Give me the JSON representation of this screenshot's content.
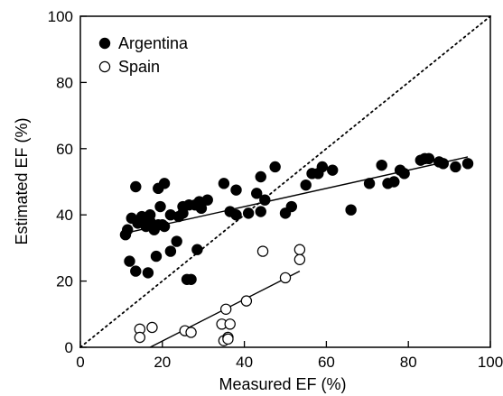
{
  "chart_data": {
    "type": "scatter",
    "xlabel": "Measured EF  (%)",
    "ylabel": "Estimated EF  (%)",
    "xlim": [
      0,
      100
    ],
    "ylim": [
      0,
      100
    ],
    "x_ticks": [
      0,
      20,
      40,
      60,
      80,
      100
    ],
    "y_ticks": [
      0,
      20,
      40,
      60,
      80,
      100
    ],
    "x_tick_labels": [
      "0",
      "20",
      "40",
      "60",
      "80",
      "100"
    ],
    "y_tick_labels": [
      "0",
      "20",
      "40",
      "60",
      "80",
      "100"
    ],
    "grid": false,
    "legend_position": "top-left",
    "identity_line": {
      "style": "dotted",
      "from": [
        0,
        0
      ],
      "to": [
        100,
        100
      ]
    },
    "series": [
      {
        "name": "Argentina",
        "marker": "filled-circle",
        "color": "#000000",
        "points": [
          [
            11,
            34
          ],
          [
            11.5,
            35.5
          ],
          [
            12,
            26
          ],
          [
            12.5,
            39
          ],
          [
            13.5,
            23
          ],
          [
            13.5,
            48.5
          ],
          [
            14,
            37.5
          ],
          [
            15,
            39.5
          ],
          [
            15,
            38
          ],
          [
            16,
            36.5
          ],
          [
            16,
            39
          ],
          [
            16.5,
            22.5
          ],
          [
            17,
            38
          ],
          [
            17,
            40
          ],
          [
            18,
            35.5
          ],
          [
            18.5,
            27.5
          ],
          [
            19,
            37
          ],
          [
            19,
            48
          ],
          [
            19.5,
            42.5
          ],
          [
            20,
            37
          ],
          [
            20.5,
            36.5
          ],
          [
            20.5,
            49.5
          ],
          [
            22,
            29
          ],
          [
            22,
            40
          ],
          [
            23.5,
            32
          ],
          [
            24,
            39.5
          ],
          [
            25,
            40.5
          ],
          [
            25,
            42.5
          ],
          [
            26,
            20.5
          ],
          [
            26.5,
            43
          ],
          [
            27,
            20.5
          ],
          [
            28,
            43
          ],
          [
            28.5,
            29.5
          ],
          [
            29,
            44
          ],
          [
            29.5,
            42
          ],
          [
            31,
            44.5
          ],
          [
            35,
            49.5
          ],
          [
            36.5,
            41
          ],
          [
            38,
            47.5
          ],
          [
            38,
            40
          ],
          [
            41,
            40.5
          ],
          [
            43,
            46.5
          ],
          [
            44,
            51.5
          ],
          [
            44,
            41
          ],
          [
            45,
            44.5
          ],
          [
            47.5,
            54.5
          ],
          [
            50,
            40.5
          ],
          [
            51.5,
            42.5
          ],
          [
            55,
            49
          ],
          [
            56.5,
            52.5
          ],
          [
            58,
            52.5
          ],
          [
            59,
            54.5
          ],
          [
            61.5,
            53.5
          ],
          [
            66,
            41.5
          ],
          [
            70.5,
            49.5
          ],
          [
            73.5,
            55
          ],
          [
            75,
            49.5
          ],
          [
            76.5,
            50
          ],
          [
            78,
            53.5
          ],
          [
            79,
            52.5
          ],
          [
            83,
            56.5
          ],
          [
            84,
            57
          ],
          [
            85,
            57
          ],
          [
            87.5,
            56
          ],
          [
            88.5,
            55.5
          ],
          [
            91.5,
            54.5
          ],
          [
            94.5,
            55.5
          ]
        ],
        "fit_line": {
          "from": [
            11,
            34.5
          ],
          "to": [
            94.5,
            57.5
          ]
        }
      },
      {
        "name": "Spain",
        "marker": "open-circle",
        "color": "#000000",
        "points": [
          [
            14.5,
            5.5
          ],
          [
            14.5,
            3
          ],
          [
            17.5,
            6
          ],
          [
            25.5,
            5
          ],
          [
            27,
            4.5
          ],
          [
            34.5,
            7
          ],
          [
            35,
            2
          ],
          [
            35.5,
            11.5
          ],
          [
            36,
            3
          ],
          [
            36,
            2.5
          ],
          [
            36.5,
            7
          ],
          [
            40.5,
            14
          ],
          [
            44.5,
            29
          ],
          [
            50,
            21
          ],
          [
            53.5,
            29.5
          ],
          [
            53.5,
            26.5
          ]
        ],
        "fit_line": {
          "from": [
            17,
            0
          ],
          "to": [
            53.5,
            23
          ]
        }
      }
    ]
  }
}
